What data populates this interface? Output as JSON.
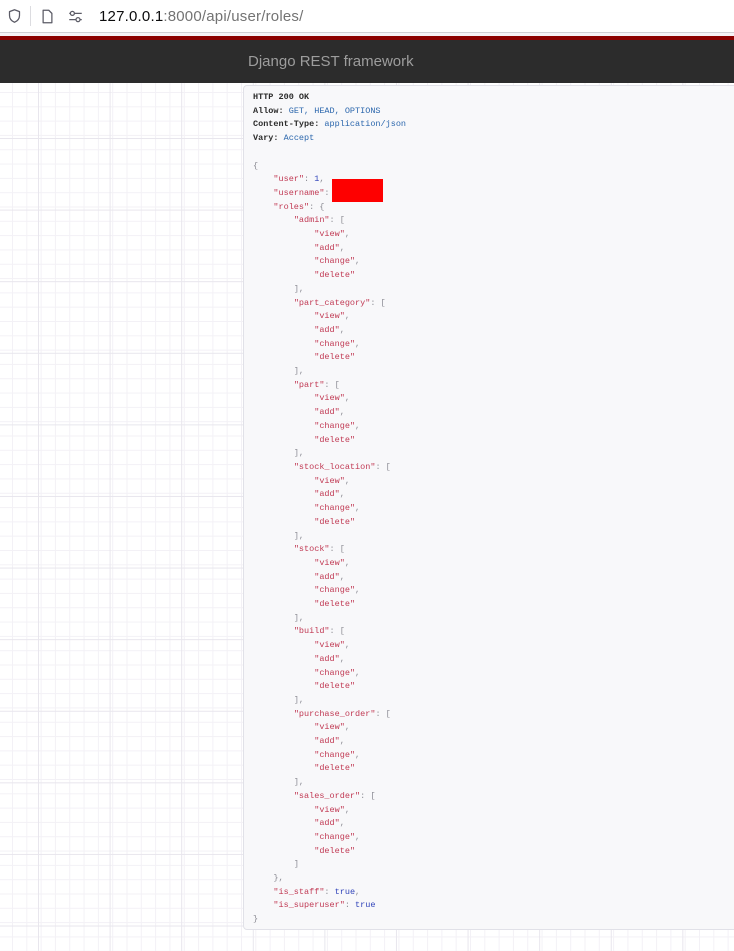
{
  "browser": {
    "url_host": "127.0.0.1",
    "url_rest": ":8000/api/user/roles/"
  },
  "navbar": {
    "brand": "Django REST framework",
    "accent_color": "#8b0000",
    "bg_color": "#2c2c2c"
  },
  "response": {
    "status_line": "HTTP 200 OK",
    "headers": [
      {
        "name": "Allow:",
        "value": "GET, HEAD, OPTIONS"
      },
      {
        "name": "Content-Type:",
        "value": "application/json"
      },
      {
        "name": "Vary:",
        "value": "Accept"
      }
    ],
    "body_fields": [
      {
        "key": "user",
        "type": "number",
        "value": "1"
      },
      {
        "key": "username",
        "type": "redacted"
      },
      {
        "key": "roles",
        "type": "role_map",
        "roles": [
          {
            "name": "admin",
            "permissions": [
              "view",
              "add",
              "change",
              "delete"
            ]
          },
          {
            "name": "part_category",
            "permissions": [
              "view",
              "add",
              "change",
              "delete"
            ]
          },
          {
            "name": "part",
            "permissions": [
              "view",
              "add",
              "change",
              "delete"
            ]
          },
          {
            "name": "stock_location",
            "permissions": [
              "view",
              "add",
              "change",
              "delete"
            ]
          },
          {
            "name": "stock",
            "permissions": [
              "view",
              "add",
              "change",
              "delete"
            ]
          },
          {
            "name": "build",
            "permissions": [
              "view",
              "add",
              "change",
              "delete"
            ]
          },
          {
            "name": "purchase_order",
            "permissions": [
              "view",
              "add",
              "change",
              "delete"
            ]
          },
          {
            "name": "sales_order",
            "permissions": [
              "view",
              "add",
              "change",
              "delete"
            ]
          }
        ]
      },
      {
        "key": "is_staff",
        "type": "literal",
        "value": "true"
      },
      {
        "key": "is_superuser",
        "type": "literal",
        "value": "true"
      }
    ],
    "colors": {
      "key_string": "#c13a54",
      "literal": "#3144ba",
      "header_value": "#2c67ad",
      "punctuation": "#8b8b93",
      "redaction": "#fe0000"
    }
  }
}
